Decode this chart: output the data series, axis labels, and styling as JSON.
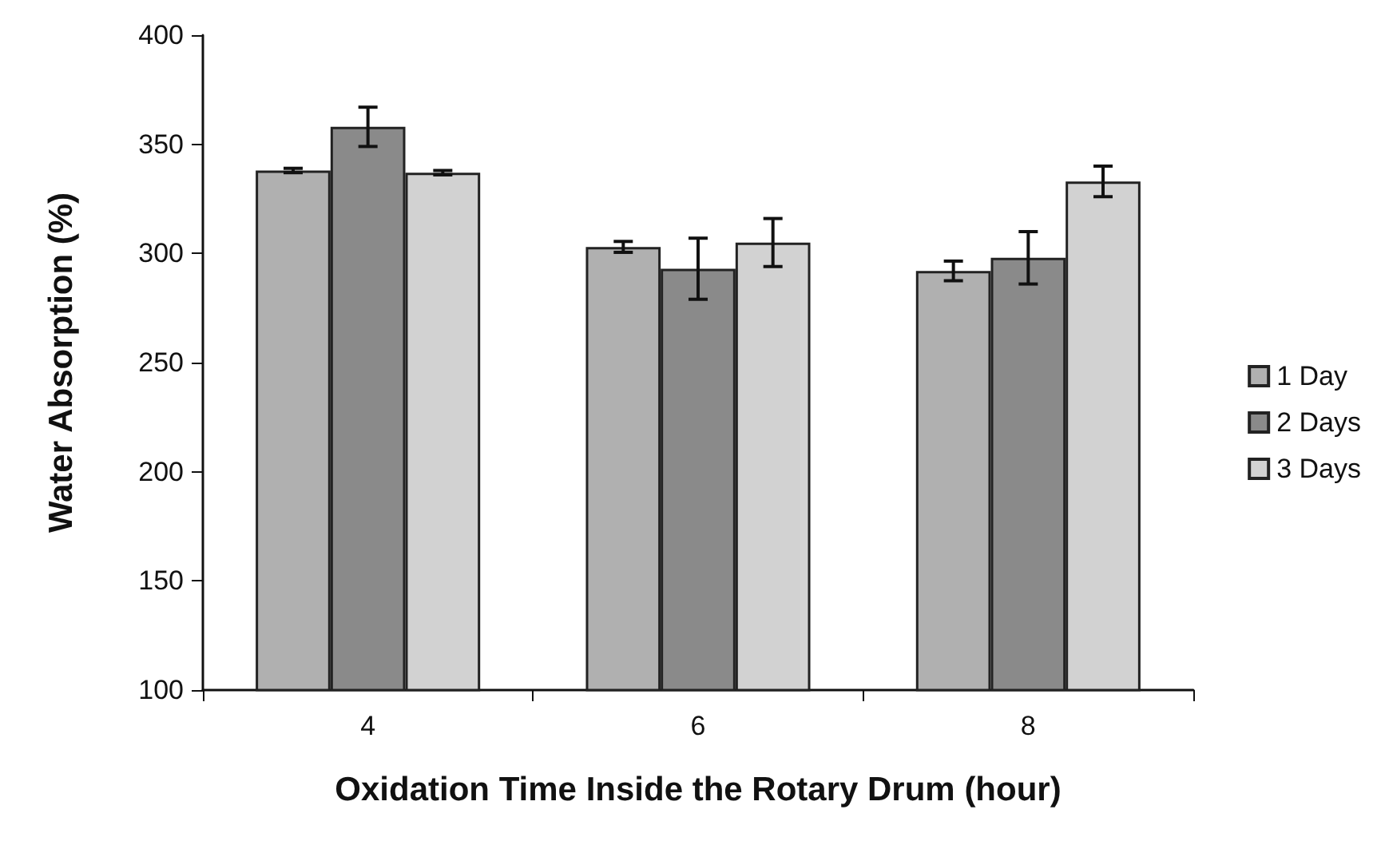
{
  "chart_data": {
    "type": "bar",
    "xlabel": "Oxidation Time Inside the Rotary Drum (hour)",
    "ylabel": "Water Absorption (%)",
    "categories": [
      "4",
      "6",
      "8"
    ],
    "series": [
      {
        "name": "1 Day",
        "color": "#b0b0b0",
        "values": [
          338,
          303,
          292
        ],
        "errors": [
          1,
          2.5,
          4.5
        ]
      },
      {
        "name": "2 Days",
        "color": "#8a8a8a",
        "values": [
          358,
          293,
          298
        ],
        "errors": [
          9,
          14,
          12
        ]
      },
      {
        "name": "3 Days",
        "color": "#d2d2d2",
        "values": [
          337,
          305,
          333
        ],
        "errors": [
          1,
          11,
          7
        ]
      }
    ],
    "ylim": [
      100,
      400
    ],
    "yticks": [
      100,
      150,
      200,
      250,
      300,
      350,
      400
    ],
    "grid": false,
    "legend": "right"
  }
}
